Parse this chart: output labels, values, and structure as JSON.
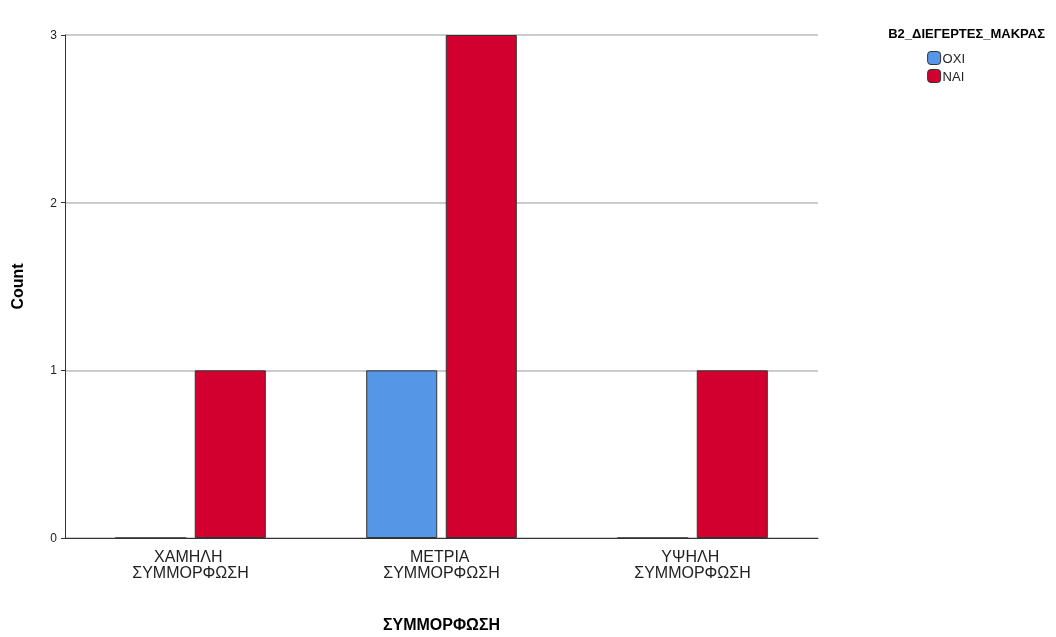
{
  "chart_data": {
    "type": "bar",
    "xlabel": "ΣΥΜΜΟΡΦΩΣΗ",
    "ylabel": "Count",
    "legend_title": "B2_ΔΙΕΓΕΡΤΕΣ_ΜΑΚΡΑΣ",
    "categories": [
      "ΧΑΜΗΛΗ ΣΥΜΜΟΡΦΩΣΗ",
      "ΜΕΤΡΙΑ ΣΥΜΜΟΡΦΩΣΗ",
      "ΥΨΗΛΗ ΣΥΜΜΟΡΦΩΣΗ"
    ],
    "series": [
      {
        "name": "ΟΧΙ",
        "color": "#5596e6",
        "values": [
          0,
          1,
          0
        ]
      },
      {
        "name": "ΝΑΙ",
        "color": "#d2002e",
        "values": [
          1,
          3,
          1
        ]
      }
    ],
    "ylim": [
      0,
      3
    ],
    "yticks": [
      0,
      1,
      2,
      3
    ],
    "grid": "y",
    "legend": "top right"
  }
}
